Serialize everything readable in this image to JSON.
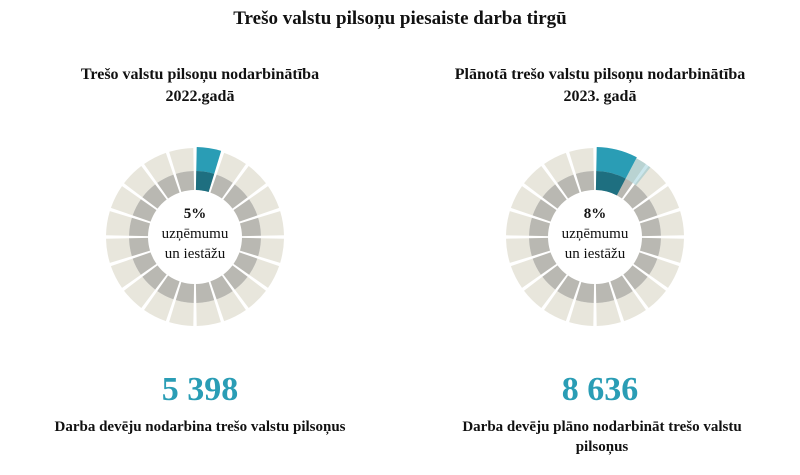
{
  "title": "Trešo valstu pilsoņu piesaiste darba tirgū",
  "colors": {
    "highlight_outer": "#2a9db5",
    "highlight_inner": "#1e6f80",
    "outer_ring": "#e8e6dc",
    "inner_ring": "#b9b8b2",
    "number": "#2a9db5"
  },
  "chart_data": [
    {
      "type": "pie",
      "title": "Trešo valstu pilsoņu nodarbinātība 2022.gadā",
      "title_lines": [
        "Trešo valstu pilsoņu nodarbinātība",
        "2022.gadā"
      ],
      "share_percent": 5,
      "center_label": {
        "value": "5%",
        "lines": [
          "uzņēmumu",
          "un iestāžu"
        ]
      },
      "segments": 20,
      "big_number": "5 398",
      "caption_lines": [
        "Darba devēju nodarbina trešo valstu pilsoņus"
      ]
    },
    {
      "type": "pie",
      "title": "Plānotā trešo valstu pilsoņu nodarbinātība 2023. gadā",
      "title_lines": [
        "Plānotā trešo valstu pilsoņu nodarbinātība",
        "2023. gadā"
      ],
      "share_percent": 8,
      "center_label": {
        "value": "8%",
        "lines": [
          "uzņēmumu",
          "un iestāžu"
        ]
      },
      "segments": 20,
      "big_number": "8 636",
      "caption_lines": [
        "Darba devēju plāno nodarbināt trešo valstu",
        "pilsoņus"
      ]
    }
  ]
}
